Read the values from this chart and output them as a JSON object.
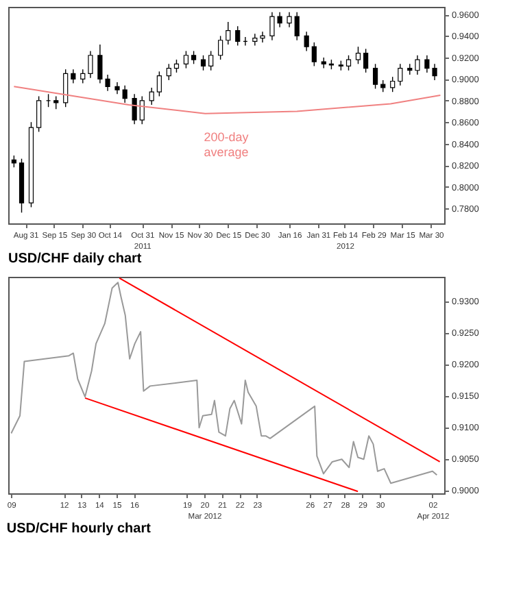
{
  "chart_data": [
    {
      "type": "candlestick",
      "annotations": [
        "200-day average",
        "USD/CHF daily chart"
      ],
      "x": [
        "2011-08-25",
        "2011-08-29",
        "2011-09-03",
        "2011-09-07",
        "2011-09-12",
        "2011-09-16",
        "2011-09-21",
        "2011-09-25",
        "2011-09-30",
        "2011-10-04",
        "2011-10-09",
        "2011-10-13",
        "2011-10-18",
        "2011-10-22",
        "2011-10-27",
        "2011-10-31",
        "2011-11-05",
        "2011-11-09",
        "2011-11-14",
        "2011-11-18",
        "2011-11-23",
        "2011-11-27",
        "2011-12-02",
        "2011-12-06",
        "2011-12-11",
        "2011-12-15",
        "2011-12-20",
        "2011-12-24",
        "2011-12-29",
        "2012-01-02",
        "2012-01-07",
        "2012-01-11",
        "2012-01-16",
        "2012-01-20",
        "2012-01-25",
        "2012-01-29",
        "2012-02-03",
        "2012-02-07",
        "2012-02-12",
        "2012-02-16",
        "2012-02-21",
        "2012-02-25",
        "2012-03-01",
        "2012-03-05",
        "2012-03-10",
        "2012-03-14",
        "2012-03-19",
        "2012-03-23",
        "2012-03-28",
        "2012-04-01"
      ],
      "ohlc": [
        [
          0.825,
          0.829,
          0.818,
          0.822
        ],
        [
          0.822,
          0.826,
          0.776,
          0.785
        ],
        [
          0.785,
          0.86,
          0.781,
          0.855
        ],
        [
          0.855,
          0.884,
          0.851,
          0.88
        ],
        [
          0.88,
          0.886,
          0.874,
          0.88
        ],
        [
          0.88,
          0.884,
          0.872,
          0.878
        ],
        [
          0.878,
          0.909,
          0.874,
          0.905
        ],
        [
          0.905,
          0.909,
          0.896,
          0.9
        ],
        [
          0.9,
          0.909,
          0.896,
          0.905
        ],
        [
          0.905,
          0.926,
          0.901,
          0.922
        ],
        [
          0.922,
          0.932,
          0.896,
          0.9
        ],
        [
          0.9,
          0.904,
          0.889,
          0.893
        ],
        [
          0.893,
          0.897,
          0.886,
          0.89
        ],
        [
          0.89,
          0.894,
          0.878,
          0.882
        ],
        [
          0.882,
          0.886,
          0.858,
          0.862
        ],
        [
          0.862,
          0.884,
          0.858,
          0.88
        ],
        [
          0.88,
          0.892,
          0.876,
          0.888
        ],
        [
          0.888,
          0.907,
          0.884,
          0.903
        ],
        [
          0.903,
          0.914,
          0.899,
          0.91
        ],
        [
          0.91,
          0.918,
          0.906,
          0.914
        ],
        [
          0.914,
          0.926,
          0.91,
          0.922
        ],
        [
          0.922,
          0.926,
          0.914,
          0.918
        ],
        [
          0.918,
          0.922,
          0.908,
          0.912
        ],
        [
          0.912,
          0.926,
          0.908,
          0.922
        ],
        [
          0.922,
          0.94,
          0.918,
          0.936
        ],
        [
          0.936,
          0.953,
          0.932,
          0.945
        ],
        [
          0.945,
          0.949,
          0.931,
          0.935
        ],
        [
          0.935,
          0.939,
          0.931,
          0.935
        ],
        [
          0.935,
          0.942,
          0.931,
          0.938
        ],
        [
          0.938,
          0.944,
          0.934,
          0.94
        ],
        [
          0.94,
          0.962,
          0.936,
          0.958
        ],
        [
          0.958,
          0.962,
          0.948,
          0.952
        ],
        [
          0.952,
          0.962,
          0.948,
          0.958
        ],
        [
          0.958,
          0.962,
          0.936,
          0.94
        ],
        [
          0.94,
          0.944,
          0.926,
          0.93
        ],
        [
          0.93,
          0.934,
          0.912,
          0.916
        ],
        [
          0.916,
          0.92,
          0.91,
          0.914
        ],
        [
          0.914,
          0.918,
          0.909,
          0.913
        ],
        [
          0.913,
          0.917,
          0.908,
          0.912
        ],
        [
          0.912,
          0.922,
          0.908,
          0.918
        ],
        [
          0.918,
          0.93,
          0.914,
          0.924
        ],
        [
          0.924,
          0.928,
          0.906,
          0.91
        ],
        [
          0.91,
          0.914,
          0.891,
          0.895
        ],
        [
          0.895,
          0.899,
          0.888,
          0.892
        ],
        [
          0.892,
          0.902,
          0.888,
          0.898
        ],
        [
          0.898,
          0.914,
          0.894,
          0.91
        ],
        [
          0.91,
          0.914,
          0.904,
          0.908
        ],
        [
          0.908,
          0.922,
          0.904,
          0.918
        ],
        [
          0.918,
          0.922,
          0.906,
          0.91
        ],
        [
          0.91,
          0.914,
          0.899,
          0.903
        ]
      ],
      "series": [
        {
          "type": "line",
          "color": "#f08080",
          "x": [
            "2011-08-25",
            "2011-10-24",
            "2011-12-03",
            "2012-01-20",
            "2012-03-09",
            "2012-04-04"
          ],
          "values": [
            0.893,
            0.876,
            0.868,
            0.87,
            0.877,
            0.885
          ]
        }
      ],
      "xlim": [
        "2011-08-22",
        "2012-04-06"
      ],
      "xticks": [
        {
          "value": "2011-08-31",
          "label": "Aug 31"
        },
        {
          "value": "2011-09-15",
          "label": "Sep 15"
        },
        {
          "value": "2011-09-30",
          "label": "Sep 30"
        },
        {
          "value": "2011-10-14",
          "label": "Oct 14"
        },
        {
          "value": "2011-10-31",
          "label": "Oct 31\n2011"
        },
        {
          "value": "2011-11-15",
          "label": "Nov 15"
        },
        {
          "value": "2011-11-30",
          "label": "Nov 30"
        },
        {
          "value": "2011-12-15",
          "label": "Dec 15"
        },
        {
          "value": "2011-12-30",
          "label": "Dec 30"
        },
        {
          "value": "2012-01-16",
          "label": "Jan 16"
        },
        {
          "value": "2012-01-31",
          "label": "Jan 31"
        },
        {
          "value": "2012-02-14",
          "label": "Feb 14\n2012"
        },
        {
          "value": "2012-02-29",
          "label": "Feb 29"
        },
        {
          "value": "2012-03-15",
          "label": "Mar 15"
        },
        {
          "value": "2012-03-30",
          "label": "Mar 30"
        }
      ],
      "ylim": [
        0.766,
        0.967
      ],
      "yticks": [
        {
          "value": 0.78,
          "label": "0.7800"
        },
        {
          "value": 0.8,
          "label": "0.8000"
        },
        {
          "value": 0.82,
          "label": "0.8200"
        },
        {
          "value": 0.84,
          "label": "0.8400"
        },
        {
          "value": 0.86,
          "label": "0.8600"
        },
        {
          "value": 0.88,
          "label": "0.8800"
        },
        {
          "value": 0.9,
          "label": "0.9000"
        },
        {
          "value": 0.92,
          "label": "0.9200"
        },
        {
          "value": 0.94,
          "label": "0.9400"
        },
        {
          "value": 0.96,
          "label": "0.9600"
        }
      ]
    },
    {
      "type": "line",
      "annotations": [
        "USD/CHF hourly chart"
      ],
      "series": [
        {
          "color": "#999999",
          "x": [
            "2012-03-09T00:00",
            "2012-03-09T12:00",
            "2012-03-09T18:00",
            "2012-03-12T07:00",
            "2012-03-12T13:00",
            "2012-03-12T19:00",
            "2012-03-13T05:00",
            "2012-03-13T14:00",
            "2012-03-13T20:00",
            "2012-03-14T08:00",
            "2012-03-14T18:00",
            "2012-03-15T02:00",
            "2012-03-15T06:00",
            "2012-03-15T12:00",
            "2012-03-15T18:00",
            "2012-03-16T01:00",
            "2012-03-16T09:00",
            "2012-03-16T13:00",
            "2012-03-16T22:00",
            "2012-03-19T14:00",
            "2012-03-19T17:00",
            "2012-03-19T22:00",
            "2012-03-20T10:00",
            "2012-03-20T14:00",
            "2012-03-20T20:00",
            "2012-03-21T05:00",
            "2012-03-21T11:00",
            "2012-03-21T17:00",
            "2012-03-22T03:00",
            "2012-03-22T08:00",
            "2012-03-22T12:00",
            "2012-03-22T23:00",
            "2012-03-23T06:00",
            "2012-03-23T12:00",
            "2012-03-23T18:00",
            "2012-03-26T07:00",
            "2012-03-26T10:00",
            "2012-03-26T19:00",
            "2012-03-27T07:00",
            "2012-03-27T20:00",
            "2012-03-28T06:00",
            "2012-03-28T12:00",
            "2012-03-28T18:00",
            "2012-03-29T02:00",
            "2012-03-29T09:00",
            "2012-03-29T15:00",
            "2012-03-29T21:00",
            "2012-03-30T06:00",
            "2012-03-30T15:00",
            "2012-04-02T00:00",
            "2012-04-02T06:00"
          ],
          "values": [
            0.909,
            0.9118,
            0.9204,
            0.9213,
            0.9217,
            0.9176,
            0.9148,
            0.9189,
            0.9232,
            0.9264,
            0.932,
            0.9329,
            0.9307,
            0.9277,
            0.9208,
            0.9232,
            0.9251,
            0.9157,
            0.9165,
            0.9174,
            0.9099,
            0.9118,
            0.912,
            0.9142,
            0.9092,
            0.9086,
            0.9129,
            0.9142,
            0.9105,
            0.9174,
            0.9155,
            0.9133,
            0.9086,
            0.9086,
            0.9082,
            0.9133,
            0.9054,
            0.9026,
            0.9045,
            0.9049,
            0.9036,
            0.9077,
            0.9052,
            0.9049,
            0.9086,
            0.9073,
            0.903,
            0.9034,
            0.9011,
            0.903,
            0.9024
          ]
        },
        {
          "color": "#ff0000",
          "x": [
            "2012-03-15T04:00",
            "2012-04-02T10:00"
          ],
          "values": [
            0.9336,
            0.9045
          ]
        },
        {
          "color": "#ff0000",
          "x": [
            "2012-03-13T05:00",
            "2012-03-28T18:00"
          ],
          "values": [
            0.9146,
            0.8998
          ]
        }
      ],
      "xlim": [
        "2012-03-08T20:00",
        "2012-04-02T16:00"
      ],
      "xticks": [
        {
          "value": "2012-03-09",
          "label": "09"
        },
        {
          "value": "2012-03-12",
          "label": "12"
        },
        {
          "value": "2012-03-13",
          "label": "13"
        },
        {
          "value": "2012-03-14",
          "label": "14"
        },
        {
          "value": "2012-03-15",
          "label": "15"
        },
        {
          "value": "2012-03-16",
          "label": "16"
        },
        {
          "value": "2012-03-19",
          "label": "19"
        },
        {
          "value": "2012-03-20",
          "label": "20\nMar 2012"
        },
        {
          "value": "2012-03-21",
          "label": "21"
        },
        {
          "value": "2012-03-22",
          "label": "22"
        },
        {
          "value": "2012-03-23",
          "label": "23"
        },
        {
          "value": "2012-03-26",
          "label": "26"
        },
        {
          "value": "2012-03-27",
          "label": "27"
        },
        {
          "value": "2012-03-28",
          "label": "28"
        },
        {
          "value": "2012-03-29",
          "label": "29"
        },
        {
          "value": "2012-03-30",
          "label": "30"
        },
        {
          "value": "2012-04-02",
          "label": "02\nApr 2012"
        }
      ],
      "ylim": [
        0.8995,
        0.9338
      ],
      "yticks": [
        {
          "value": 0.9,
          "label": "0.9000"
        },
        {
          "value": 0.905,
          "label": "0.9050"
        },
        {
          "value": 0.91,
          "label": "0.9100"
        },
        {
          "value": 0.915,
          "label": "0.9150"
        },
        {
          "value": 0.92,
          "label": "0.9200"
        },
        {
          "value": 0.925,
          "label": "0.9250"
        },
        {
          "value": 0.93,
          "label": "0.9300"
        }
      ]
    }
  ]
}
